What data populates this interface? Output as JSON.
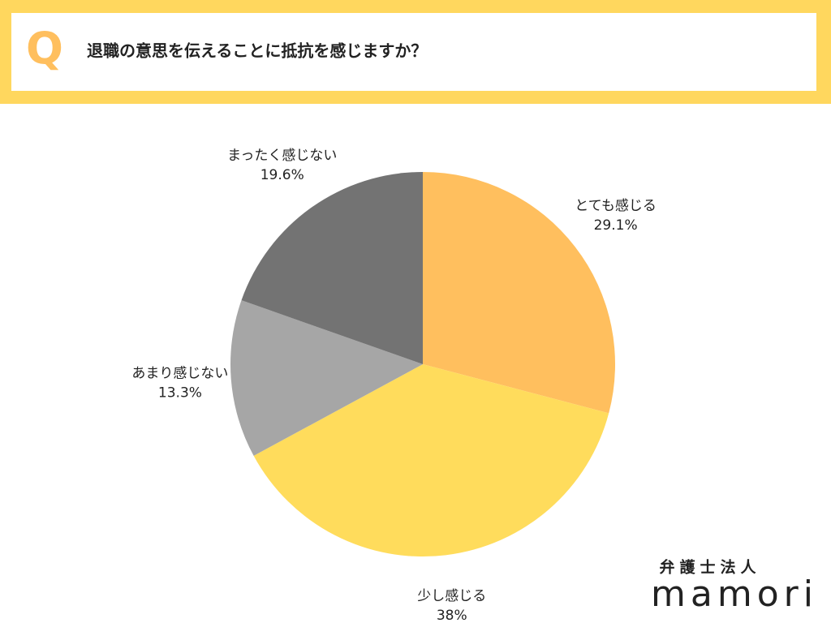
{
  "header": {
    "marker": "Q",
    "question": "退職の意思を伝えることに抵抗を感じますか？"
  },
  "chart_data": {
    "type": "pie",
    "categories": [
      "とても感じる",
      "少し感じる",
      "あまり感じない",
      "まったく感じない"
    ],
    "values": [
      29.1,
      38,
      13.3,
      19.6
    ],
    "value_labels": [
      "29.1%",
      "38%",
      "13.3%",
      "19.6%"
    ],
    "colors": [
      "#FFBF5E",
      "#FFDC5C",
      "#A6A6A6",
      "#737373"
    ]
  },
  "brand": {
    "sub": "弁護士法人",
    "name": "mamori"
  }
}
